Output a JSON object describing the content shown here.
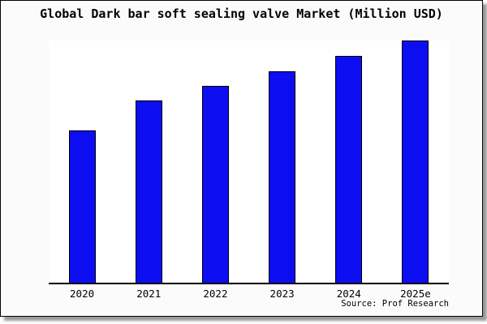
{
  "chart_data": {
    "type": "bar",
    "title": "Global Dark bar soft sealing valve Market (Million USD)",
    "categories": [
      "2020",
      "2021",
      "2022",
      "2023",
      "2024",
      "2025e"
    ],
    "values": [
      62.8,
      75.1,
      81.4,
      87.4,
      93.7,
      100
    ],
    "values_unit": "relative height, % of tallest (2025e) bar; no numeric y-axis shown",
    "ylim": [
      0,
      100
    ],
    "xlabel": "",
    "ylabel": "",
    "gridlines": false,
    "legend": "none",
    "x_axis_line": true,
    "y_axis_line": false,
    "bar_fill": "#0d0df2",
    "bar_border": "#000000",
    "source_note": "Source: Prof Research"
  }
}
